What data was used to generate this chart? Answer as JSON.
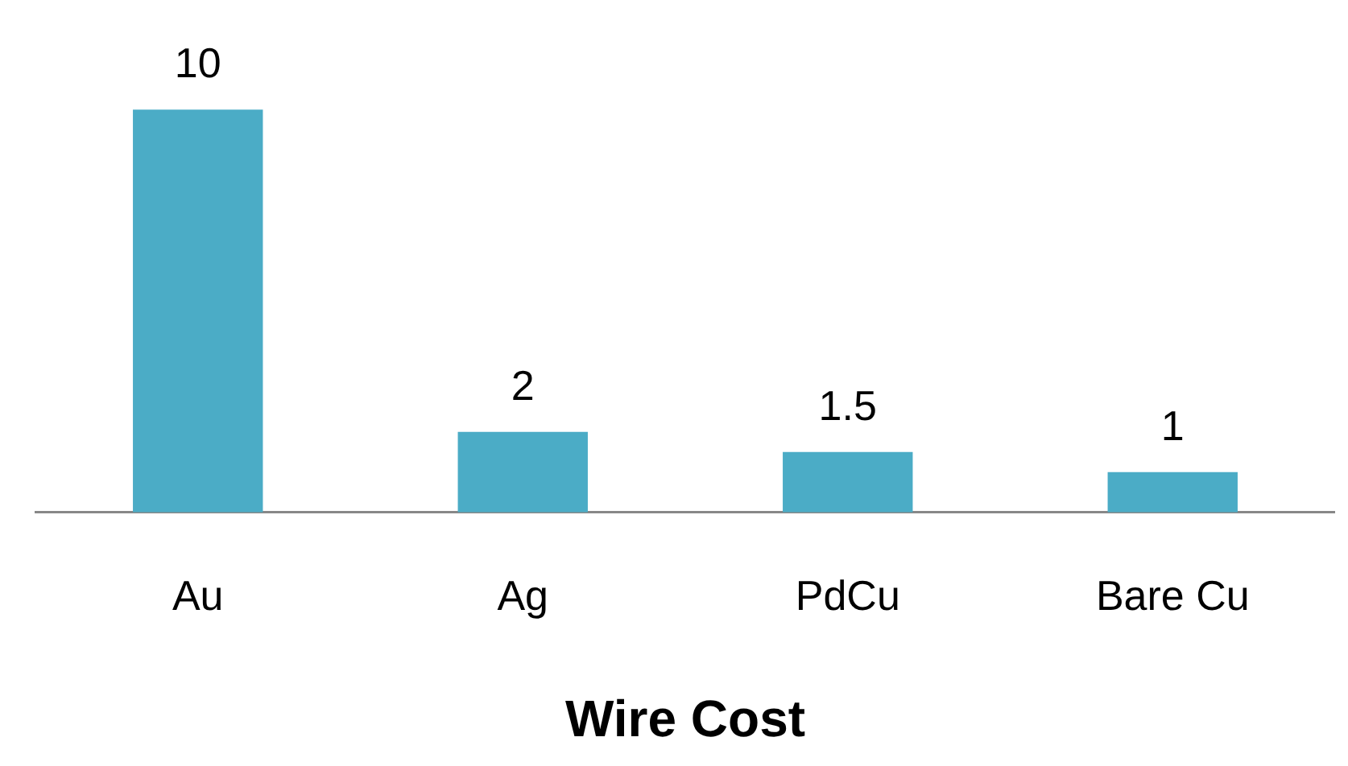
{
  "chart_data": {
    "type": "bar",
    "xlabel": "Wire Cost",
    "categories": [
      "Au",
      "Ag",
      "PdCu",
      "Bare Cu"
    ],
    "values": [
      10,
      2,
      1.5,
      1
    ],
    "color": "#4bacc6",
    "data_labels": true,
    "tick_labels": "x",
    "grid": false,
    "legend": false
  }
}
